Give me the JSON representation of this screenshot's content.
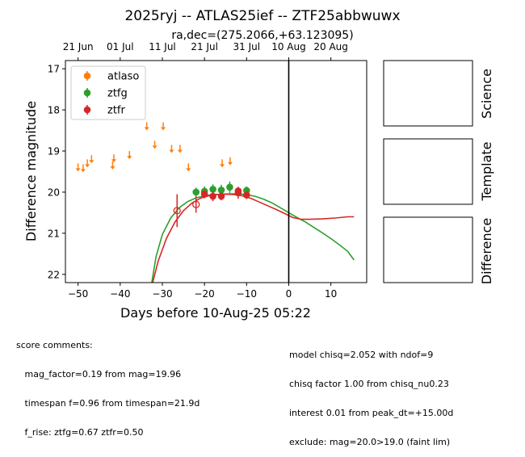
{
  "chart_data": {
    "type": "scatter",
    "title": "2025ryj -- ATLAS25ief -- ZTF25abbwuwx",
    "subtitle": "ra,dec=(275.2066,+63.123095)",
    "xlabel": "Days before 10-Aug-25 05:22",
    "ylabel": "Difference magnitude",
    "xlim": [
      -53,
      18.5
    ],
    "ylim": [
      22.2,
      16.8
    ],
    "x_ticks": [
      -50,
      -40,
      -30,
      -20,
      -10,
      0,
      10
    ],
    "x_tick_labels": [
      "−50",
      "−40",
      "−30",
      "−20",
      "−10",
      "0",
      "10"
    ],
    "y_ticks": [
      17,
      18,
      19,
      20,
      21,
      22
    ],
    "top_ticks": [
      {
        "x": -50,
        "label": "21 Jun"
      },
      {
        "x": -40,
        "label": "01 Jul"
      },
      {
        "x": -30,
        "label": "11 Jul"
      },
      {
        "x": -20,
        "label": "21 Jul"
      },
      {
        "x": -10,
        "label": "31 Jul"
      },
      {
        "x": 0,
        "label": "10 Aug"
      },
      {
        "x": 10,
        "label": "20 Aug"
      }
    ],
    "reference_line_x": 0,
    "grid": false,
    "legend_position": "top-left",
    "series": [
      {
        "name": "atlaso",
        "color": "#ff7f0e",
        "upper_limits": [
          {
            "x": -50.0,
            "y": 19.4
          },
          {
            "x": -48.8,
            "y": 19.42
          },
          {
            "x": -47.8,
            "y": 19.3
          },
          {
            "x": -46.8,
            "y": 19.2
          },
          {
            "x": -41.8,
            "y": 19.35
          },
          {
            "x": -41.5,
            "y": 19.18
          },
          {
            "x": -37.8,
            "y": 19.1
          },
          {
            "x": -33.7,
            "y": 18.4
          },
          {
            "x": -31.8,
            "y": 18.85
          },
          {
            "x": -29.8,
            "y": 18.4
          },
          {
            "x": -27.8,
            "y": 18.95
          },
          {
            "x": -25.8,
            "y": 18.95
          },
          {
            "x": -23.8,
            "y": 19.4
          },
          {
            "x": -15.8,
            "y": 19.3
          },
          {
            "x": -13.9,
            "y": 19.25
          }
        ]
      },
      {
        "name": "ztfg",
        "color": "#2ca02c",
        "points": [
          {
            "x": -22.0,
            "y": 20.0,
            "err": 0.11
          },
          {
            "x": -20.0,
            "y": 19.98,
            "err": 0.12
          },
          {
            "x": -18.0,
            "y": 19.93,
            "err": 0.12
          },
          {
            "x": -16.0,
            "y": 19.95,
            "err": 0.13
          },
          {
            "x": -14.0,
            "y": 19.88,
            "err": 0.14
          },
          {
            "x": -10.0,
            "y": 19.96,
            "err": 0.1
          }
        ],
        "model": [
          [
            -32.5,
            22.2
          ],
          [
            -31.5,
            21.57
          ],
          [
            -30,
            21.03
          ],
          [
            -28,
            20.63
          ],
          [
            -26,
            20.38
          ],
          [
            -24,
            20.23
          ],
          [
            -22,
            20.14
          ],
          [
            -20,
            20.09
          ],
          [
            -18,
            20.06
          ],
          [
            -16,
            20.05
          ],
          [
            -14,
            20.04
          ],
          [
            -12,
            20.04
          ],
          [
            -10,
            20.06
          ],
          [
            -8,
            20.1
          ],
          [
            -6,
            20.17
          ],
          [
            -4,
            20.26
          ],
          [
            -2,
            20.38
          ],
          [
            0,
            20.5
          ],
          [
            2,
            20.62
          ],
          [
            4,
            20.73
          ],
          [
            6,
            20.86
          ],
          [
            8,
            20.99
          ],
          [
            10,
            21.13
          ],
          [
            12,
            21.28
          ],
          [
            14,
            21.44
          ],
          [
            15.5,
            21.65
          ]
        ]
      },
      {
        "name": "ztfr",
        "color": "#d62728",
        "points": [
          {
            "x": -20.0,
            "y": 20.05,
            "err": 0.1
          },
          {
            "x": -18.0,
            "y": 20.1,
            "err": 0.12
          },
          {
            "x": -16.0,
            "y": 20.1,
            "err": 0.1
          },
          {
            "x": -12.0,
            "y": 19.97,
            "err": 0.1
          },
          {
            "x": -12.0,
            "y": 20.02,
            "err": 0.14
          },
          {
            "x": -10.0,
            "y": 20.07,
            "err": 0.1
          }
        ],
        "nondetections": [
          {
            "x": -26.5,
            "y": 20.45,
            "err": 0.4
          },
          {
            "x": -22.0,
            "y": 20.3,
            "err": 0.2
          }
        ],
        "model": [
          [
            -32.3,
            22.2
          ],
          [
            -31,
            21.68
          ],
          [
            -29,
            21.12
          ],
          [
            -27,
            20.73
          ],
          [
            -25,
            20.45
          ],
          [
            -23,
            20.27
          ],
          [
            -21,
            20.15
          ],
          [
            -19,
            20.09
          ],
          [
            -17,
            20.06
          ],
          [
            -15,
            20.05
          ],
          [
            -13,
            20.06
          ],
          [
            -11,
            20.09
          ],
          [
            -9,
            20.15
          ],
          [
            -7,
            20.24
          ],
          [
            -5,
            20.33
          ],
          [
            -3,
            20.42
          ],
          [
            -1,
            20.52
          ],
          [
            1,
            20.62
          ],
          [
            3,
            20.66
          ],
          [
            5,
            20.66
          ],
          [
            8,
            20.65
          ],
          [
            11,
            20.63
          ],
          [
            14,
            20.6
          ],
          [
            15.5,
            20.6
          ]
        ]
      }
    ]
  },
  "cutouts": [
    "Science",
    "Template",
    "Difference"
  ],
  "comments_left": [
    "score comments:",
    "   mag_factor=0.19 from mag=19.96",
    "   timespan f=0.96 from timespan=21.9d",
    "   f_rise: ztfg=0.67 ztfr=0.50"
  ],
  "comments_right": [
    "model chisq=2.052 with ndof=9",
    "chisq factor 1.00 from chisq_nu0.23",
    "interest 0.01 from peak_dt=+15.00d",
    "exclude: mag=20.0>19.0 (faint lim)"
  ]
}
